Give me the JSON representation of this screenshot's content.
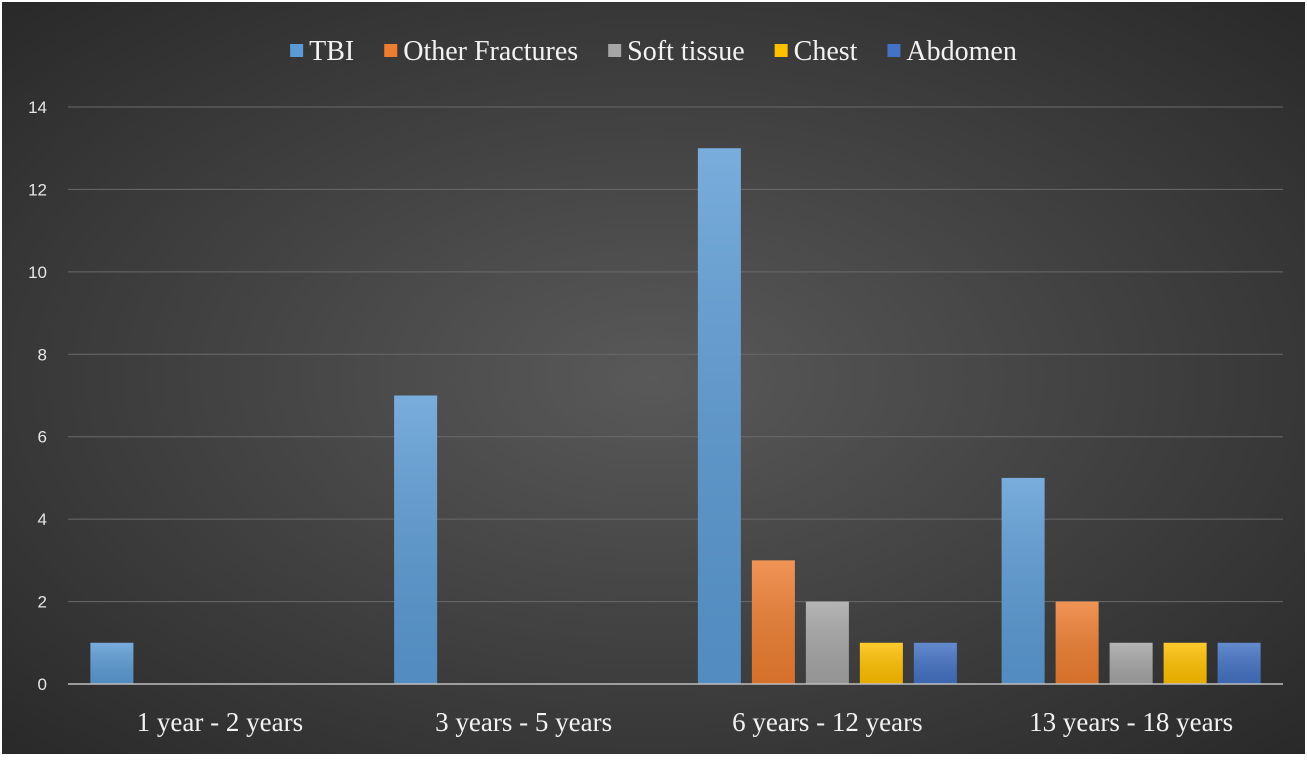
{
  "chart_data": {
    "type": "bar",
    "title": "",
    "xlabel": "",
    "ylabel": "",
    "categories": [
      "1 year - 2 years",
      "3 years - 5 years",
      "6 years - 12 years",
      "13 years - 18 years"
    ],
    "series": [
      {
        "name": "TBI",
        "color": "#5b9bd5",
        "values": [
          1,
          7,
          13,
          5
        ]
      },
      {
        "name": "Other Fractures",
        "color": "#ed7d31",
        "values": [
          0,
          0,
          3,
          2
        ]
      },
      {
        "name": "Soft tissue",
        "color": "#a5a5a5",
        "values": [
          0,
          0,
          2,
          1
        ]
      },
      {
        "name": "Chest",
        "color": "#ffc000",
        "values": [
          0,
          0,
          1,
          1
        ]
      },
      {
        "name": "Abdomen",
        "color": "#4472c4",
        "values": [
          0,
          0,
          1,
          1
        ]
      }
    ],
    "ylim": [
      0,
      14
    ],
    "yticks": [
      "0",
      "2",
      "4",
      "6",
      "8",
      "10",
      "12",
      "14"
    ],
    "grid": true,
    "legend": "top",
    "background": "#404040"
  }
}
